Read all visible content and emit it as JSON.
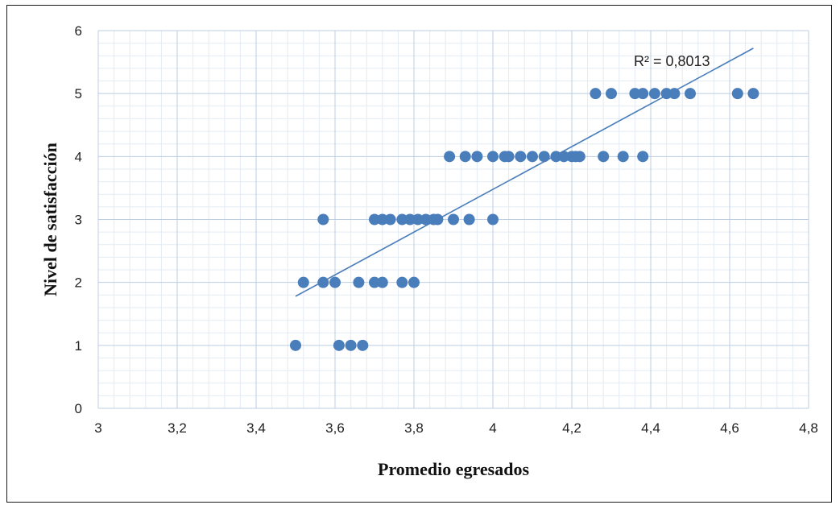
{
  "chart_data": {
    "type": "scatter",
    "title": "",
    "xlabel": "Promedio egresados",
    "ylabel": "Nivel de satisfacción",
    "xlim": [
      3,
      4.8
    ],
    "ylim": [
      0,
      6
    ],
    "x_ticks": [
      "3",
      "3,2",
      "3,4",
      "3,6",
      "3,8",
      "4",
      "4,2",
      "4,4",
      "4,6",
      "4,8"
    ],
    "y_ticks": [
      "0",
      "1",
      "2",
      "3",
      "4",
      "5",
      "6"
    ],
    "grid": true,
    "legend": "none",
    "point_color": "#4a7ebb",
    "trendline": {
      "type": "linear",
      "x": [
        3.5,
        4.66
      ],
      "y": [
        1.78,
        5.72
      ],
      "color": "#4a7ebb",
      "label": "R² = 0,8013"
    },
    "points": [
      {
        "x": 3.5,
        "y": 1
      },
      {
        "x": 3.61,
        "y": 1
      },
      {
        "x": 3.64,
        "y": 1
      },
      {
        "x": 3.67,
        "y": 1
      },
      {
        "x": 3.52,
        "y": 2
      },
      {
        "x": 3.57,
        "y": 2
      },
      {
        "x": 3.6,
        "y": 2
      },
      {
        "x": 3.66,
        "y": 2
      },
      {
        "x": 3.7,
        "y": 2
      },
      {
        "x": 3.72,
        "y": 2
      },
      {
        "x": 3.77,
        "y": 2
      },
      {
        "x": 3.8,
        "y": 2
      },
      {
        "x": 3.57,
        "y": 3
      },
      {
        "x": 3.7,
        "y": 3
      },
      {
        "x": 3.72,
        "y": 3
      },
      {
        "x": 3.74,
        "y": 3
      },
      {
        "x": 3.77,
        "y": 3
      },
      {
        "x": 3.79,
        "y": 3
      },
      {
        "x": 3.81,
        "y": 3
      },
      {
        "x": 3.83,
        "y": 3
      },
      {
        "x": 3.85,
        "y": 3
      },
      {
        "x": 3.86,
        "y": 3
      },
      {
        "x": 3.9,
        "y": 3
      },
      {
        "x": 3.94,
        "y": 3
      },
      {
        "x": 4.0,
        "y": 3
      },
      {
        "x": 3.89,
        "y": 4
      },
      {
        "x": 3.93,
        "y": 4
      },
      {
        "x": 3.96,
        "y": 4
      },
      {
        "x": 4.0,
        "y": 4
      },
      {
        "x": 4.03,
        "y": 4
      },
      {
        "x": 4.04,
        "y": 4
      },
      {
        "x": 4.07,
        "y": 4
      },
      {
        "x": 4.1,
        "y": 4
      },
      {
        "x": 4.13,
        "y": 4
      },
      {
        "x": 4.16,
        "y": 4
      },
      {
        "x": 4.18,
        "y": 4
      },
      {
        "x": 4.2,
        "y": 4
      },
      {
        "x": 4.21,
        "y": 4
      },
      {
        "x": 4.22,
        "y": 4
      },
      {
        "x": 4.28,
        "y": 4
      },
      {
        "x": 4.33,
        "y": 4
      },
      {
        "x": 4.38,
        "y": 4
      },
      {
        "x": 4.26,
        "y": 5
      },
      {
        "x": 4.3,
        "y": 5
      },
      {
        "x": 4.36,
        "y": 5
      },
      {
        "x": 4.38,
        "y": 5
      },
      {
        "x": 4.41,
        "y": 5
      },
      {
        "x": 4.44,
        "y": 5
      },
      {
        "x": 4.46,
        "y": 5
      },
      {
        "x": 4.5,
        "y": 5
      },
      {
        "x": 4.62,
        "y": 5
      },
      {
        "x": 4.66,
        "y": 5
      }
    ]
  }
}
